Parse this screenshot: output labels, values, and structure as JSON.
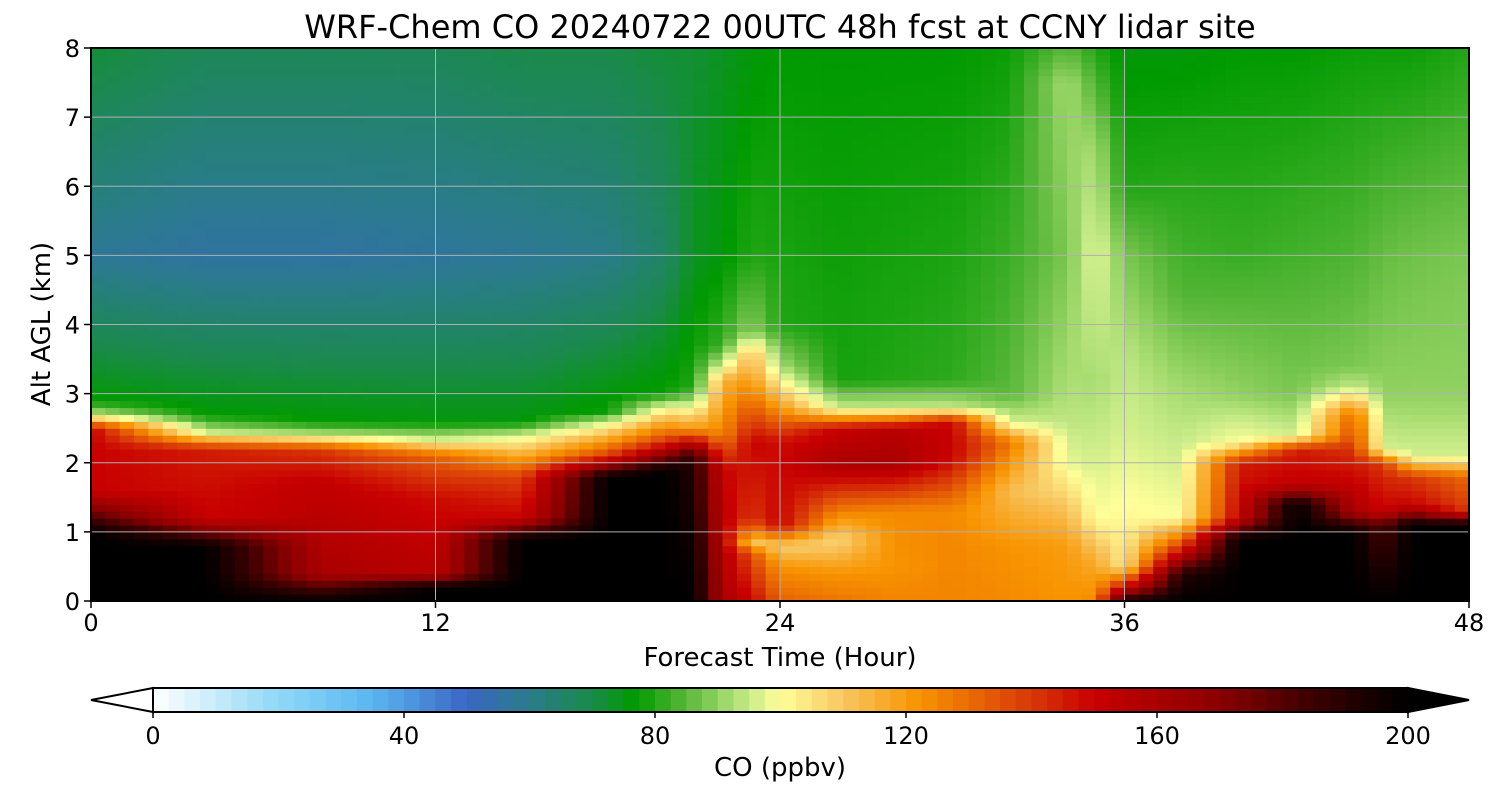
{
  "chart_data": {
    "type": "heatmap",
    "title": "WRF-Chem CO  20240722 00UTC 48h fcst at CCNY lidar site",
    "xlabel": "Forecast Time (Hour)",
    "ylabel": "Alt AGL (km)",
    "xlim": [
      0,
      48
    ],
    "ylim": [
      0,
      8
    ],
    "x_ticks": [
      "0",
      "12",
      "24",
      "36",
      "48"
    ],
    "y_ticks": [
      "0",
      "1",
      "2",
      "3",
      "4",
      "5",
      "6",
      "7",
      "8"
    ],
    "grid": true,
    "colorbar": {
      "label": "CO  (ppbv)",
      "range": [
        0,
        200
      ],
      "extend": "both",
      "ticks": [
        "0",
        "40",
        "80",
        "120",
        "160",
        "200"
      ],
      "stops": [
        {
          "value": 0,
          "color": "#ffffff"
        },
        {
          "value": 20,
          "color": "#8fd8f6"
        },
        {
          "value": 35,
          "color": "#5ab6f0"
        },
        {
          "value": 50,
          "color": "#3a66c4"
        },
        {
          "value": 60,
          "color": "#2a7c8a"
        },
        {
          "value": 70,
          "color": "#1a8a4a"
        },
        {
          "value": 77,
          "color": "#009a00"
        },
        {
          "value": 85,
          "color": "#5ab83a"
        },
        {
          "value": 95,
          "color": "#c8eb88"
        },
        {
          "value": 100,
          "color": "#ffff99"
        },
        {
          "value": 110,
          "color": "#f8c660"
        },
        {
          "value": 122,
          "color": "#f89400"
        },
        {
          "value": 140,
          "color": "#d83808"
        },
        {
          "value": 150,
          "color": "#c80000"
        },
        {
          "value": 170,
          "color": "#8a0000"
        },
        {
          "value": 185,
          "color": "#3a0000"
        },
        {
          "value": 200,
          "color": "#000000"
        }
      ]
    },
    "time_hours": [
      0,
      4,
      8,
      12,
      15,
      18,
      20,
      21,
      22,
      23,
      24,
      26,
      28,
      30,
      32,
      34,
      35,
      36,
      38,
      40,
      42,
      44,
      45,
      46,
      48
    ],
    "profiles": [
      [
        [
          0,
          200
        ],
        [
          1,
          200
        ],
        [
          1.6,
          150
        ],
        [
          2.5,
          150
        ],
        [
          2.7,
          95
        ],
        [
          2.9,
          77
        ],
        [
          5,
          58
        ],
        [
          8,
          72
        ]
      ],
      [
        [
          0,
          200
        ],
        [
          0.8,
          200
        ],
        [
          1.2,
          150
        ],
        [
          2.2,
          145
        ],
        [
          2.45,
          95
        ],
        [
          2.7,
          77
        ],
        [
          5,
          56
        ],
        [
          8,
          68
        ]
      ],
      [
        [
          0,
          200
        ],
        [
          0.4,
          160
        ],
        [
          1.7,
          152
        ],
        [
          2.2,
          140
        ],
        [
          2.4,
          95
        ],
        [
          2.6,
          77
        ],
        [
          5,
          56
        ],
        [
          8,
          68
        ]
      ],
      [
        [
          0,
          200
        ],
        [
          0.2,
          200
        ],
        [
          0.4,
          155
        ],
        [
          1.5,
          148
        ],
        [
          2.1,
          132
        ],
        [
          2.35,
          95
        ],
        [
          2.6,
          76
        ],
        [
          5,
          57
        ],
        [
          8,
          68
        ]
      ],
      [
        [
          0,
          200
        ],
        [
          0.9,
          200
        ],
        [
          1.2,
          150
        ],
        [
          1.8,
          138
        ],
        [
          2.4,
          96
        ],
        [
          2.6,
          76
        ],
        [
          5,
          58
        ],
        [
          8,
          70
        ]
      ],
      [
        [
          0,
          200
        ],
        [
          1.8,
          200
        ],
        [
          2.1,
          140
        ],
        [
          2.55,
          100
        ],
        [
          2.75,
          78
        ],
        [
          5,
          60
        ],
        [
          8,
          70
        ]
      ],
      [
        [
          0,
          200
        ],
        [
          1.9,
          200
        ],
        [
          2.3,
          142
        ],
        [
          2.8,
          100
        ],
        [
          3.0,
          78
        ],
        [
          5,
          66
        ],
        [
          8,
          72
        ]
      ],
      [
        [
          0,
          200
        ],
        [
          2.1,
          190
        ],
        [
          2.5,
          120
        ],
        [
          2.9,
          92
        ],
        [
          3.1,
          80
        ],
        [
          5,
          74
        ],
        [
          8,
          72
        ]
      ],
      [
        [
          0,
          160
        ],
        [
          1.9,
          150
        ],
        [
          2.4,
          125
        ],
        [
          3.2,
          115
        ],
        [
          3.4,
          97
        ],
        [
          3.7,
          82
        ],
        [
          5,
          76
        ],
        [
          8,
          74
        ]
      ],
      [
        [
          0,
          150
        ],
        [
          0.7,
          135
        ],
        [
          0.85,
          110
        ],
        [
          1.2,
          140
        ],
        [
          2.3,
          150
        ],
        [
          3.2,
          120
        ],
        [
          3.6,
          112
        ],
        [
          3.9,
          90
        ],
        [
          5,
          80
        ],
        [
          8,
          76
        ]
      ],
      [
        [
          0,
          132
        ],
        [
          0.5,
          122
        ],
        [
          0.8,
          108
        ],
        [
          1.1,
          150
        ],
        [
          2.3,
          148
        ],
        [
          3.0,
          110
        ],
        [
          3.4,
          92
        ],
        [
          4.0,
          80
        ],
        [
          8,
          77
        ]
      ],
      [
        [
          0,
          128
        ],
        [
          0.4,
          122
        ],
        [
          0.9,
          106
        ],
        [
          1.3,
          126
        ],
        [
          2.0,
          160
        ],
        [
          2.5,
          150
        ],
        [
          2.8,
          95
        ],
        [
          3.2,
          79
        ],
        [
          8,
          77
        ]
      ],
      [
        [
          0,
          125
        ],
        [
          0.5,
          122
        ],
        [
          1.3,
          124
        ],
        [
          2.0,
          160
        ],
        [
          2.5,
          155
        ],
        [
          2.8,
          95
        ],
        [
          3.2,
          80
        ],
        [
          8,
          77
        ]
      ],
      [
        [
          0,
          125
        ],
        [
          1.3,
          124
        ],
        [
          2.1,
          150
        ],
        [
          2.6,
          150
        ],
        [
          2.8,
          95
        ],
        [
          3.2,
          81
        ],
        [
          8,
          77
        ]
      ],
      [
        [
          0,
          124
        ],
        [
          0.8,
          122
        ],
        [
          1.6,
          112
        ],
        [
          2.3,
          128
        ],
        [
          2.6,
          96
        ],
        [
          3.0,
          85
        ],
        [
          8,
          78
        ]
      ],
      [
        [
          0,
          122
        ],
        [
          0.8,
          120
        ],
        [
          1.4,
          110
        ],
        [
          2.0,
          98
        ],
        [
          2.6,
          94
        ],
        [
          5,
          88
        ],
        [
          7.5,
          92
        ],
        [
          8,
          85
        ]
      ],
      [
        [
          0,
          124
        ],
        [
          0.6,
          116
        ],
        [
          1.2,
          100
        ],
        [
          2.0,
          96
        ],
        [
          3.2,
          92
        ],
        [
          5,
          98
        ],
        [
          6.5,
          92
        ],
        [
          8,
          80
        ]
      ],
      [
        [
          0,
          195
        ],
        [
          0.2,
          150
        ],
        [
          0.5,
          104
        ],
        [
          1.5,
          100
        ],
        [
          2.5,
          96
        ],
        [
          3.5,
          94
        ],
        [
          5,
          88
        ],
        [
          6,
          80
        ],
        [
          8,
          76
        ]
      ],
      [
        [
          0,
          200
        ],
        [
          0.4,
          190
        ],
        [
          0.8,
          140
        ],
        [
          1.2,
          100
        ],
        [
          2.0,
          96
        ],
        [
          3.0,
          92
        ],
        [
          4.5,
          84
        ],
        [
          8,
          76
        ]
      ],
      [
        [
          0,
          200
        ],
        [
          0.9,
          200
        ],
        [
          1.2,
          152
        ],
        [
          2.0,
          145
        ],
        [
          2.3,
          100
        ],
        [
          3.0,
          90
        ],
        [
          5,
          82
        ],
        [
          8,
          77
        ]
      ],
      [
        [
          0,
          200
        ],
        [
          1.4,
          200
        ],
        [
          1.7,
          152
        ],
        [
          2.2,
          145
        ],
        [
          2.4,
          96
        ],
        [
          3.0,
          88
        ],
        [
          5,
          83
        ],
        [
          8,
          77
        ]
      ],
      [
        [
          0,
          200
        ],
        [
          1.0,
          200
        ],
        [
          1.3,
          160
        ],
        [
          2.7,
          130
        ],
        [
          3.1,
          95
        ],
        [
          3.4,
          88
        ],
        [
          5,
          84
        ],
        [
          8,
          78
        ]
      ],
      [
        [
          0,
          200
        ],
        [
          1.1,
          180
        ],
        [
          1.3,
          150
        ],
        [
          2.0,
          140
        ],
        [
          2.2,
          96
        ],
        [
          3.0,
          90
        ],
        [
          5,
          86
        ],
        [
          8,
          78
        ]
      ],
      [
        [
          0,
          200
        ],
        [
          1.1,
          200
        ],
        [
          1.4,
          150
        ],
        [
          1.8,
          140
        ],
        [
          2.1,
          96
        ],
        [
          3.0,
          90
        ],
        [
          5,
          87
        ],
        [
          8,
          78
        ]
      ],
      [
        [
          0,
          200
        ],
        [
          1.1,
          200
        ],
        [
          1.3,
          140
        ],
        [
          1.8,
          130
        ],
        [
          2.1,
          96
        ],
        [
          3.0,
          90
        ],
        [
          5,
          88
        ],
        [
          8,
          80
        ]
      ]
    ]
  }
}
